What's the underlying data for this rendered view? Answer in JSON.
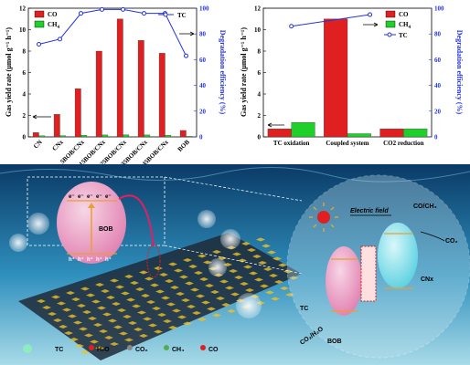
{
  "chart_data": [
    {
      "type": "bar",
      "categories": [
        "CN",
        "CNx",
        "5BOB/CNx",
        "15BOB/CNx",
        "25BOB/CNx",
        "35BOB/CNx",
        "45BOB/CNx",
        "BOB"
      ],
      "series": [
        {
          "name": "CO",
          "color": "#e02020",
          "values": [
            0.4,
            2.1,
            4.5,
            8.0,
            11.0,
            9.0,
            7.8,
            0.6
          ]
        },
        {
          "name": "CH4",
          "color": "#1fcf2a",
          "values": [
            0.1,
            0.12,
            0.15,
            0.18,
            0.2,
            0.18,
            0.15,
            0.05
          ]
        }
      ],
      "line_series": {
        "name": "TC",
        "color": "#2233dd",
        "values": [
          72,
          76,
          96,
          99,
          99,
          96,
          96,
          63
        ]
      },
      "ylabel": "Gas yield rate (μmol g⁻¹ h⁻¹)",
      "y2label": "Degradation efficiency (%)",
      "ylim": [
        0,
        12
      ],
      "y2lim": [
        0,
        100
      ],
      "yticks": [
        "0",
        "2",
        "4",
        "6",
        "8",
        "10",
        "12"
      ],
      "y2ticks": [
        "0",
        "20",
        "40",
        "60",
        "80",
        "100"
      ]
    },
    {
      "type": "bar",
      "categories": [
        "TC oxidation",
        "Coupled system",
        "CO2 reduction"
      ],
      "series": [
        {
          "name": "CO",
          "color": "#e02020",
          "values": [
            0.75,
            11.0,
            0.75
          ]
        },
        {
          "name": "CH4",
          "color": "#1fcf2a",
          "values": [
            1.35,
            0.3,
            0.75
          ]
        }
      ],
      "line_series": {
        "name": "TC",
        "color": "#2233dd",
        "values": [
          86,
          95
        ]
      },
      "ylabel": "Gas yield rate (μmol g⁻¹ h⁻¹)",
      "y2label": "Degradation efficiency (%)",
      "ylim": [
        0,
        12
      ],
      "y2lim": [
        0,
        100
      ],
      "yticks": [
        "0",
        "2",
        "4",
        "6",
        "8",
        "10",
        "12"
      ],
      "y2ticks": [
        "0",
        "20",
        "40",
        "60",
        "80",
        "100"
      ]
    }
  ],
  "legend": {
    "co": "CO",
    "ch4": "CH",
    "ch4_sub": "4",
    "tc": "TC"
  },
  "scene": {
    "bob_label": "BOB",
    "electric_field": "Electric field",
    "co_ch4": "CO/CH₄",
    "co2": "CO₂",
    "cnx": "CNx",
    "bob_bottom": "BOB",
    "tc": "TC",
    "co2_h2o": "CO₂/H₂O",
    "electron": "e⁻",
    "hole": "h⁺",
    "key": {
      "tc": "TC",
      "h2o": "H₂O",
      "co2": "CO₂",
      "ch4": "CH₄",
      "co": "CO"
    }
  }
}
